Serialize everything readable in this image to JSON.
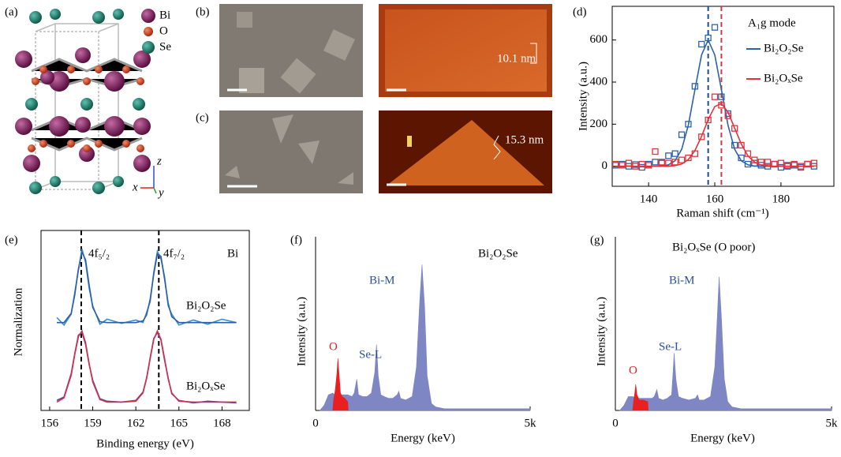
{
  "figure": {
    "panel_labels": [
      "(a)",
      "(b)",
      "(c)",
      "(d)",
      "(e)",
      "(f)",
      "(g)"
    ],
    "structure_legend": [
      {
        "label": "Bi",
        "color": "#7a1f5c"
      },
      {
        "label": "O",
        "color": "#d2401e"
      },
      {
        "label": "Se",
        "color": "#1f7f6e"
      }
    ],
    "axis_triad": [
      "z",
      "x",
      "y"
    ],
    "afm_heights": [
      "10.1 nm",
      "15.3 nm"
    ]
  },
  "chart_data": [
    {
      "type": "line",
      "xlabel": "Raman shift (cm⁻¹)",
      "ylabel": "Intensity (a.u.)",
      "legend_title": "A₁g mode",
      "xlim": [
        129,
        196
      ],
      "ylim": [
        -95,
        760
      ],
      "xticks": [
        140,
        160,
        180
      ],
      "yticks": [
        0,
        200,
        400,
        600
      ],
      "vlines": [
        {
          "x": 158,
          "color": "#1f4e8c"
        },
        {
          "x": 162,
          "color": "#e0343c"
        }
      ],
      "series": [
        {
          "style": "markers",
          "color": "#2a62ad",
          "x": [
            130,
            132,
            134,
            136,
            138,
            140,
            142,
            144,
            146,
            148,
            150,
            152,
            154,
            156,
            158,
            160,
            162,
            164,
            166,
            168,
            170,
            172,
            174,
            176,
            178,
            180,
            182,
            184,
            186,
            188,
            190
          ],
          "values": [
            5,
            10,
            0,
            8,
            -5,
            10,
            20,
            15,
            50,
            60,
            150,
            200,
            380,
            580,
            610,
            660,
            330,
            250,
            100,
            40,
            10,
            15,
            5,
            0,
            10,
            -5,
            0,
            5,
            -5,
            10,
            0
          ]
        },
        {
          "name": "Bi₂O₂Se",
          "style": "line",
          "color": "#2a62ad",
          "x": [
            130,
            132,
            134,
            136,
            138,
            140,
            142,
            144,
            146,
            148,
            150,
            152,
            154,
            156,
            158,
            160,
            162,
            164,
            166,
            168,
            170,
            172,
            174,
            176,
            178,
            180,
            182,
            184,
            186,
            188,
            190
          ],
          "values": [
            0,
            0,
            0,
            0,
            0,
            0,
            0,
            1,
            7,
            26,
            81,
            195,
            364,
            529,
            600,
            529,
            364,
            195,
            81,
            26,
            7,
            1,
            0,
            0,
            0,
            0,
            0,
            0,
            0,
            0,
            0
          ]
        },
        {
          "style": "markers",
          "color": "#e0343c",
          "x": [
            130,
            132,
            134,
            136,
            138,
            140,
            142,
            144,
            146,
            148,
            150,
            152,
            154,
            156,
            158,
            160,
            162,
            164,
            166,
            168,
            170,
            172,
            174,
            176,
            178,
            180,
            182,
            184,
            186,
            188,
            190
          ],
          "values": [
            10,
            5,
            15,
            0,
            10,
            5,
            70,
            20,
            15,
            20,
            30,
            40,
            60,
            140,
            220,
            330,
            290,
            240,
            180,
            100,
            60,
            30,
            20,
            20,
            10,
            15,
            5,
            10,
            0,
            10,
            15
          ]
        },
        {
          "name": "Bi₂OₓSe",
          "style": "line",
          "color": "#e0343c",
          "x": [
            130,
            132,
            134,
            136,
            138,
            140,
            142,
            144,
            146,
            148,
            150,
            152,
            154,
            156,
            158,
            160,
            162,
            164,
            166,
            168,
            170,
            172,
            174,
            176,
            178,
            180,
            182,
            184,
            186,
            188,
            190
          ],
          "values": [
            0,
            0,
            0,
            0,
            0,
            0,
            0,
            0,
            0,
            3,
            11,
            32,
            75,
            142,
            222,
            284,
            298,
            257,
            182,
            106,
            50,
            20,
            6,
            1,
            0,
            0,
            0,
            0,
            0,
            0,
            0
          ]
        }
      ]
    },
    {
      "type": "line",
      "xlabel": "Binding energy (eV)",
      "ylabel": "Normalization",
      "xlim": [
        155.4,
        169.9
      ],
      "ylim": [
        -0.05,
        2.1
      ],
      "xticks": [
        156,
        159,
        162,
        165,
        168
      ],
      "vlines": [
        {
          "x": 158.2,
          "color": "#000000"
        },
        {
          "x": 163.6,
          "color": "#000000"
        }
      ],
      "annotations": [
        {
          "text": "4f₅/₂",
          "color": "#000000"
        },
        {
          "text": "4f₇/₂",
          "color": "#000000"
        },
        {
          "text": "Bi",
          "color": "#000000"
        },
        {
          "text": "Bi₂O₂Se",
          "color": "#000000"
        },
        {
          "text": "Bi₂OₓSe",
          "color": "#000000"
        }
      ],
      "series": [
        {
          "style": "line",
          "color": "#3a8fd0",
          "x": [
            156.5,
            157,
            157.5,
            157.75,
            158,
            158.25,
            158.5,
            158.75,
            159,
            159.5,
            160,
            161,
            162,
            162.5,
            162.75,
            163,
            163.25,
            163.5,
            163.75,
            164,
            164.25,
            164.5,
            165,
            166,
            167,
            168,
            169
          ],
          "values": [
            1.06,
            0.97,
            1.1,
            1.36,
            1.62,
            1.88,
            1.72,
            1.41,
            1.2,
            0.98,
            1.04,
            0.99,
            1.03,
            1.0,
            1.12,
            1.25,
            1.6,
            1.85,
            1.76,
            1.55,
            1.2,
            1.1,
            0.97,
            1.03,
            0.98,
            1.04,
            1.0
          ]
        },
        {
          "style": "line",
          "color": "#2b5ea8",
          "x": [
            156.5,
            157,
            157.5,
            157.75,
            158,
            158.25,
            158.5,
            158.75,
            159,
            159.5,
            160,
            161,
            162,
            162.5,
            162.75,
            163,
            163.25,
            163.5,
            163.75,
            164,
            164.25,
            164.5,
            165,
            166,
            167,
            168,
            169
          ],
          "values": [
            1.0,
            1.0,
            1.11,
            1.33,
            1.64,
            1.84,
            1.75,
            1.45,
            1.18,
            1.01,
            1.0,
            1.0,
            1.0,
            1.02,
            1.09,
            1.28,
            1.58,
            1.82,
            1.79,
            1.52,
            1.23,
            1.07,
            1.0,
            1.0,
            1.0,
            1.0,
            1.0
          ]
        },
        {
          "style": "line",
          "color": "#5a4aa0",
          "x": [
            156.5,
            157,
            157.5,
            157.75,
            158,
            158.25,
            158.5,
            158.75,
            159,
            159.5,
            160,
            161,
            162,
            162.5,
            162.75,
            163,
            163.25,
            163.5,
            163.75,
            164,
            164.25,
            164.5,
            165,
            166,
            167,
            168,
            169
          ],
          "values": [
            0.07,
            0.11,
            0.39,
            0.63,
            0.85,
            0.88,
            0.74,
            0.5,
            0.31,
            0.09,
            0.06,
            0.05,
            0.07,
            0.17,
            0.34,
            0.58,
            0.81,
            0.88,
            0.79,
            0.55,
            0.34,
            0.15,
            0.07,
            0.04,
            0.06,
            0.05,
            0.04
          ]
        },
        {
          "style": "line",
          "color": "#d0304a",
          "x": [
            156.5,
            157,
            157.5,
            157.75,
            158,
            158.25,
            158.5,
            158.75,
            159,
            159.5,
            160,
            161,
            162,
            162.5,
            162.75,
            163,
            163.25,
            163.5,
            163.75,
            164,
            164.25,
            164.5,
            165,
            166,
            167,
            168,
            169
          ],
          "values": [
            0.05,
            0.1,
            0.37,
            0.62,
            0.83,
            0.9,
            0.76,
            0.51,
            0.29,
            0.08,
            0.05,
            0.05,
            0.06,
            0.16,
            0.33,
            0.57,
            0.8,
            0.9,
            0.8,
            0.57,
            0.33,
            0.16,
            0.06,
            0.05,
            0.05,
            0.05,
            0.05
          ]
        }
      ]
    },
    {
      "type": "area",
      "xlabel": "Energy (keV)",
      "ylabel": "Intensity (a.u.)",
      "xlim": [
        0,
        5000
      ],
      "ylim": [
        0,
        100
      ],
      "xticks": [
        0,
        {
          "value": 5000,
          "label": "5k"
        }
      ],
      "annotations": [
        {
          "text": "Bi₂O₂Se",
          "color": "#000000"
        },
        {
          "text": "Bi-M",
          "color": "#2b4f9a"
        },
        {
          "text": "Se-L",
          "color": "#2b4f9a"
        },
        {
          "text": "O",
          "color": "#e02020"
        }
      ],
      "series": [
        {
          "color": "#7f86c4",
          "x": [
            100,
            200,
            300,
            400,
            450,
            500,
            550,
            600,
            700,
            750,
            850,
            900,
            960,
            1000,
            1100,
            1200,
            1300,
            1380,
            1420,
            1460,
            1520,
            1600,
            1700,
            1800,
            1900,
            1940,
            1980,
            2100,
            2250,
            2350,
            2420,
            2480,
            2540,
            2600,
            2700,
            2800,
            3000,
            3500,
            4000,
            4500,
            5000
          ],
          "values": [
            0,
            3,
            9,
            10,
            9,
            8,
            9,
            9,
            9,
            9,
            8,
            10,
            18,
            9,
            8,
            8,
            10,
            22,
            38,
            20,
            9,
            8,
            7,
            7,
            9,
            11,
            7,
            6,
            8,
            25,
            60,
            84,
            60,
            20,
            4,
            2,
            1,
            1,
            1,
            1,
            1
          ]
        },
        {
          "color": "#e82020",
          "x": [
            400,
            420,
            460,
            500,
            520,
            550,
            580,
            620,
            680,
            750,
            760
          ],
          "values": [
            0,
            6,
            12,
            22,
            30,
            20,
            10,
            8,
            7,
            5,
            0
          ]
        }
      ]
    },
    {
      "type": "area",
      "xlabel": "Energy (keV)",
      "ylabel": "Intensity (a.u.)",
      "xlim": [
        0,
        5000
      ],
      "ylim": [
        0,
        100
      ],
      "xticks": [
        0,
        {
          "value": 5000,
          "label": "5k"
        }
      ],
      "annotations": [
        {
          "text": "Bi₂OₓSe (O poor)",
          "color": "#000000"
        },
        {
          "text": "Bi-M",
          "color": "#2b4f9a"
        },
        {
          "text": "Se-L",
          "color": "#2b4f9a"
        },
        {
          "text": "O",
          "color": "#e02020"
        }
      ],
      "series": [
        {
          "color": "#7f86c4",
          "x": [
            100,
            200,
            300,
            400,
            500,
            600,
            700,
            850,
            900,
            960,
            1000,
            1100,
            1200,
            1300,
            1330,
            1360,
            1400,
            1460,
            1550,
            1700,
            1850,
            1900,
            1940,
            2050,
            2200,
            2300,
            2360,
            2400,
            2450,
            2520,
            2600,
            2700,
            2900,
            3500,
            4000,
            4500,
            5000
          ],
          "values": [
            0,
            3,
            8,
            8,
            7,
            7,
            7,
            7,
            8,
            12,
            7,
            6,
            7,
            9,
            20,
            33,
            18,
            8,
            7,
            6,
            7,
            9,
            6,
            6,
            8,
            25,
            55,
            77,
            55,
            18,
            5,
            2,
            1,
            1,
            1,
            1,
            1
          ]
        },
        {
          "color": "#e82020",
          "x": [
            400,
            420,
            450,
            470,
            500,
            550,
            650,
            750,
            760
          ],
          "values": [
            0,
            5,
            10,
            15,
            9,
            6,
            6,
            5,
            0
          ]
        }
      ]
    }
  ]
}
